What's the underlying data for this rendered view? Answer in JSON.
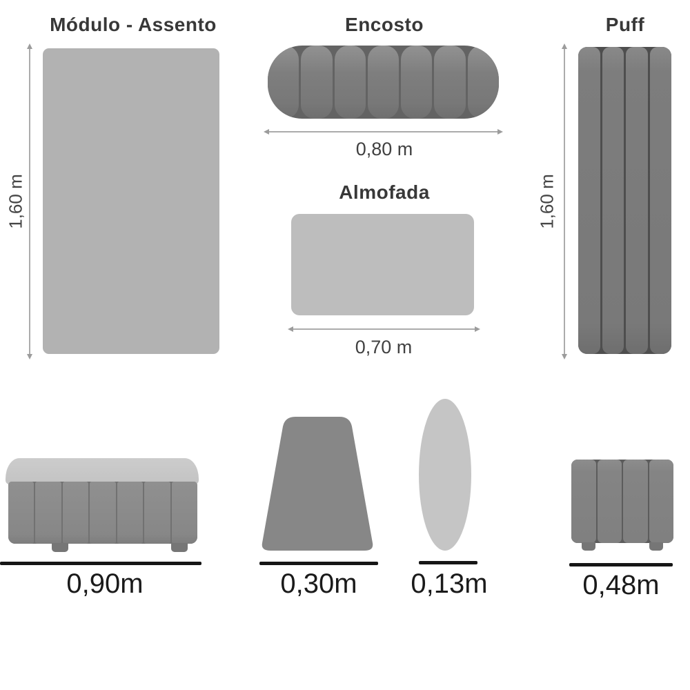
{
  "diagram": {
    "pieces": {
      "modulo_assento": {
        "title": "Módulo - Assento",
        "height_label": "1,60 m",
        "segments": 1
      },
      "encosto": {
        "title": "Encosto",
        "width_label": "0,80 m",
        "segments": 7
      },
      "almofada": {
        "title": "Almofada",
        "width_label": "0,70 m"
      },
      "puff": {
        "title": "Puff",
        "height_label": "1,60 m",
        "segments": 4
      },
      "bench": {
        "width_label": "0,90m",
        "segments": 7
      },
      "trapezoid_cushion": {
        "width_label": "0,30m"
      },
      "roll_cushion": {
        "width_label": "0,13m"
      },
      "mini_puff": {
        "width_label": "0,48m",
        "segments": 4
      }
    },
    "colors": {
      "light_gray_fabric": "#b2b2b2",
      "lighter_gray_fabric": "#bdbdbd",
      "pale_gray_fabric": "#c5c5c5",
      "dark_gray_fabric": "#808080",
      "measure_line_thin": "#ababab",
      "measure_line_bold": "#161616"
    }
  }
}
